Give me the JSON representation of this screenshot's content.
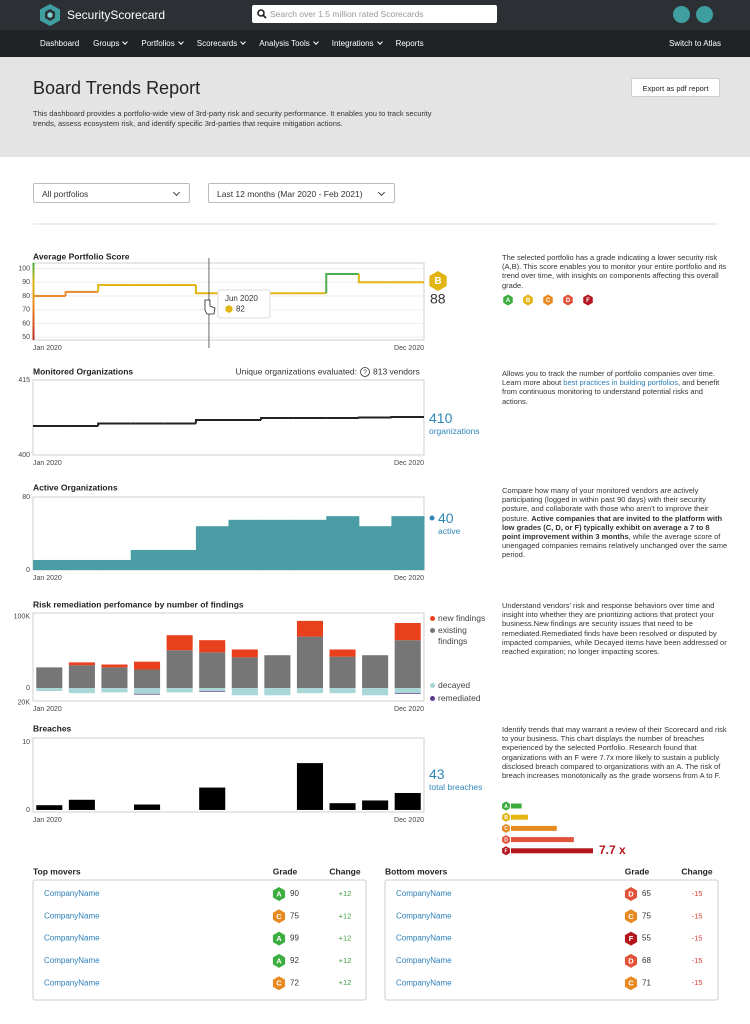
{
  "header": {
    "logo": "SecurityScorecard",
    "search_placeholder": "Search over 1.5 million rated Scorecards"
  },
  "nav": {
    "items": [
      {
        "label": "Dashboard"
      },
      {
        "label": "Groups",
        "dropdown": true
      },
      {
        "label": "Portfolios",
        "dropdown": true
      },
      {
        "label": "Scorecards",
        "dropdown": true
      },
      {
        "label": "Analysis Tools",
        "dropdown": true
      },
      {
        "label": "Integrations",
        "dropdown": true
      },
      {
        "label": "Reports"
      }
    ],
    "right": "Switch to Atlas"
  },
  "page": {
    "title": "Board Trends Report",
    "export_button": "Export as pdf report",
    "description": "This dashboard provides a portfolio-wide view of 3rd-party risk and security performance. It enables you to track security trends, assess ecosystem risk, and identify specific 3rd-parties that require mitigation actions."
  },
  "filters": [
    "All portfolios",
    "Last 12 months (Mar 2020 - Feb 2021)"
  ],
  "grade_colors": {
    "A": "#3cad3f",
    "B": "#e2b512",
    "C": "#e88a22",
    "D": "#e0533a",
    "F": "#b3161c"
  },
  "chart_data": [
    {
      "type": "line",
      "step": true,
      "title": "Average Portfolio Score",
      "categories": [
        "Jan 2020",
        null,
        null,
        null,
        null,
        null,
        null,
        null,
        null,
        null,
        null,
        "Dec 2020"
      ],
      "values": [
        80,
        83,
        88,
        88,
        88,
        82,
        82,
        82,
        82,
        96,
        90,
        90
      ],
      "colors": [
        "#e8892b",
        "#e8892b",
        "#e0b514",
        "#e0b514",
        "#e0b514",
        "#e0b514",
        "#e0b514",
        "#e0b514",
        "#e0b514",
        "#4cae4c",
        "#e0b514",
        "#e0b514"
      ],
      "ylim": [
        48,
        104
      ],
      "yticks": [
        50,
        60,
        70,
        80,
        90,
        100
      ],
      "grid": true,
      "grade": "B",
      "score": 88,
      "tooltip": "Jun 2020",
      "grades": [
        "A",
        "B",
        "C",
        "D",
        "F"
      ],
      "description": [
        {
          "text": "The selected portfolio has a grade indicating a lower security risk (A,B). This score enables you to monitor your entire portfolio and its trend over time, with insights on components affecting this overall grade."
        }
      ]
    },
    {
      "type": "line",
      "step": true,
      "title": "Monitored Organizations",
      "color": "#222222",
      "categories": [
        "Jan 2020",
        null,
        null,
        null,
        null,
        null,
        null,
        null,
        null,
        null,
        null,
        "Dec 2020"
      ],
      "values": [
        405.8,
        405.8,
        406.3,
        406.3,
        406.3,
        407,
        407,
        407.4,
        407.4,
        407.4,
        407.5,
        407.6
      ],
      "ylim": [
        400,
        415
      ],
      "yticks": [
        400,
        415
      ],
      "grid": false,
      "note": "Unique organizations evaluated:",
      "note_icon": "?",
      "note_value": "813 vendors",
      "total": 410,
      "total_label": "organizations",
      "description": [
        {
          "text": "Allows you to track the number of portfolio companies over time. Learn more about "
        },
        {
          "text": "best practices in building portfolios",
          "style": "link"
        },
        {
          "text": ", and benefit from continuous monitoring to understand potential risks and actions."
        }
      ]
    },
    {
      "type": "area",
      "step": true,
      "title": "Active Organizations",
      "color": "#4a9ca5",
      "categories": [
        "Jan 2020",
        null,
        null,
        null,
        null,
        null,
        null,
        null,
        null,
        null,
        null,
        "Dec 2020"
      ],
      "values": [
        11,
        11,
        11,
        22,
        22,
        48,
        55,
        55,
        55,
        59,
        48,
        59
      ],
      "ylim": [
        0,
        80
      ],
      "yticks": [
        0,
        80
      ],
      "grid": false,
      "total": 40,
      "total_label": "active",
      "description": [
        {
          "text": "Compare how many of your monitored vendors are actively participating (logged in within past 90 days)  with their security posture, and collaborate with those who aren't to improve their posture. "
        },
        {
          "text": "Active companies that are invited to the platform with low grades (C, D, or F) typically exhibit on average a 7 to 8 point improvement within 3 months",
          "style": "bold"
        },
        {
          "text": ", while the average score of unengaged companies remains relatively unchanged over the same period."
        }
      ]
    },
    {
      "type": "bar",
      "stacked": true,
      "title": "Risk remediation perfomance by number of findings",
      "categories": [
        "Jan 2020",
        null,
        null,
        null,
        null,
        null,
        null,
        null,
        null,
        null,
        null,
        "Dec 2020"
      ],
      "series": [
        {
          "name": "new findings",
          "color": "#e8401c",
          "values": [
            0,
            4000,
            4000,
            11000,
            21000,
            17000,
            11000,
            0,
            22000,
            10000,
            0,
            24000
          ]
        },
        {
          "name": "existing findings",
          "color": "#767676",
          "values": [
            29000,
            32000,
            29000,
            26000,
            53000,
            50000,
            43000,
            46000,
            72000,
            44000,
            46000,
            67000
          ]
        },
        {
          "name": "decayed",
          "color": "#a9d6d6",
          "values": [
            -4000,
            -7000,
            -6000,
            -8000,
            -6000,
            -4000,
            -10000,
            -10000,
            -7000,
            -7000,
            -10000,
            -7000
          ]
        },
        {
          "name": "remediated",
          "color": "#5b3a8c",
          "values": [
            0,
            0,
            0,
            -1000,
            0,
            -1000,
            0,
            0,
            0,
            0,
            0,
            -1000
          ]
        }
      ],
      "ylim": [
        -18000,
        105000
      ],
      "yticks": [
        {
          "value": 100000,
          "label": "100K"
        },
        0,
        {
          "value": -20000,
          "label": "20K"
        }
      ],
      "grid": false,
      "legend": "right",
      "description": [
        {
          "text": "Understand vendors' risk and response behaviors over time and insight into whether they are prioritizing actions that protect your business.New findings are security issues that need to be remediated.Remediated finds have been resolved or disputed by impacted companies, while Decayed items have been addressed or reached expiration; no longer impacting scores."
        }
      ]
    },
    {
      "type": "bar",
      "title": "Breaches",
      "color": "#000000",
      "categories": [
        "Jan 2020",
        null,
        null,
        null,
        null,
        null,
        null,
        null,
        null,
        null,
        null,
        "Dec 2020"
      ],
      "values": [
        0.7,
        1.5,
        0,
        0.8,
        0,
        3.3,
        0,
        0,
        6.9,
        1,
        1.4,
        2.5
      ],
      "ylim": [
        -0.3,
        10.6
      ],
      "yticks": [
        0,
        10
      ],
      "grid": false,
      "total": 43,
      "total_label": "total breaches",
      "description": [
        {
          "text": "Identify trends that may warrant a review of their Scorecard and risk to your business. This chart displays the number of breaches experienced by the selected Portfolio. Research found that organizations with an F were 7.7x more likely to sustain a publicly disclosed breach compared to organizations with an A. The risk of breach increases monotonically as the grade worsens from A to F."
        }
      ]
    },
    {
      "type": "bar",
      "horizontal": true,
      "categories": [
        "A",
        "B",
        "C",
        "D",
        "F"
      ],
      "values": [
        1,
        1.6,
        4.3,
        5.9,
        7.7
      ],
      "value_labels": [
        null,
        null,
        null,
        null,
        "7.7 x"
      ]
    }
  ],
  "tables": [
    {
      "title": "Top movers",
      "columns": [
        "Grade",
        "Change"
      ],
      "change_color": "#3c9b3c",
      "rows": [
        [
          "CompanyName",
          "A",
          90,
          "+12"
        ],
        [
          "CompanyName",
          "C",
          75,
          "+12"
        ],
        [
          "CompanyName",
          "A",
          99,
          "+12"
        ],
        [
          "CompanyName",
          "A",
          92,
          "+12"
        ],
        [
          "CompanyName",
          "C",
          72,
          "+12"
        ]
      ]
    },
    {
      "title": "Bottom movers",
      "columns": [
        "Grade",
        "Change"
      ],
      "change_color": "#d43b33",
      "rows": [
        [
          "CompanyName",
          "D",
          65,
          "-15"
        ],
        [
          "CompanyName",
          "C",
          75,
          "-15"
        ],
        [
          "CompanyName",
          "F",
          55,
          "-15"
        ],
        [
          "CompanyName",
          "D",
          68,
          "-15"
        ],
        [
          "CompanyName",
          "C",
          71,
          "-15"
        ]
      ]
    }
  ]
}
